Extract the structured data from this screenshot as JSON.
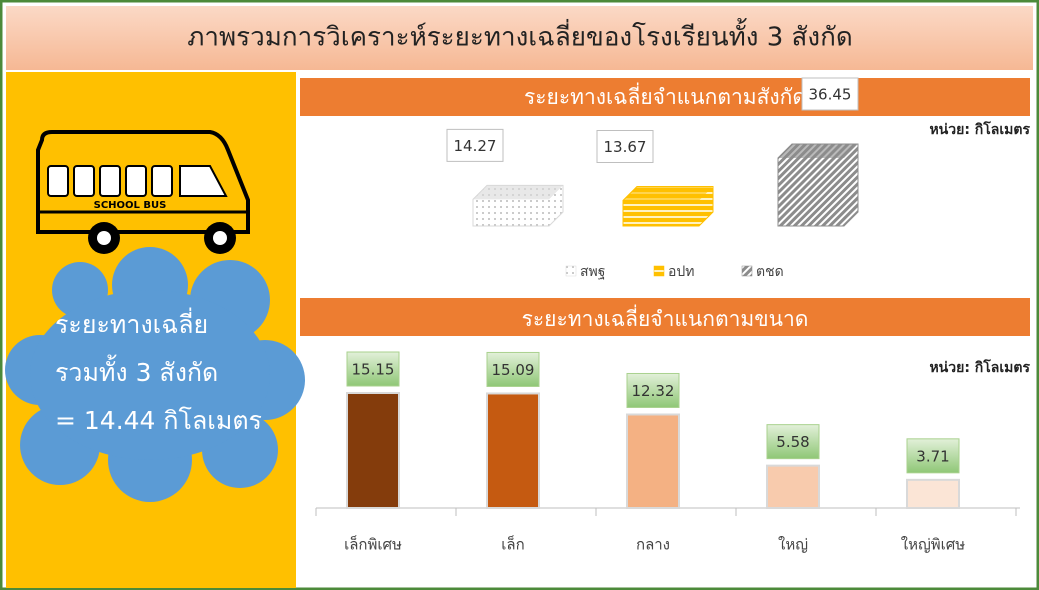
{
  "header": {
    "title": "ภาพรวมการวิเคราะห์ระยะทางเฉลี่ยของโรงเรียนทั้ง 3 สังกัด"
  },
  "bus": {
    "label": "SCHOOL BUS"
  },
  "summary": {
    "lines": [
      "ระยะทางเฉลี่ย",
      "รวมทั้ง 3 สังกัด",
      "= 14.44 กิโลเมตร"
    ]
  },
  "chart_data": [
    {
      "type": "bar",
      "three_d": true,
      "title": "ระยะทางเฉลี่ยจำแนกตามสังกัด",
      "unit_label": "หน่วย: กิโลเมตร",
      "series": [
        {
          "name": "สพฐ",
          "color": "#d9d9d9",
          "values": [
            14.27
          ]
        },
        {
          "name": "อปท",
          "color": "#ffc000",
          "values": [
            13.67
          ]
        },
        {
          "name": "ตชด",
          "color": "#8c8c8c",
          "values": [
            36.45
          ]
        }
      ]
    },
    {
      "type": "bar",
      "three_d": false,
      "title": "ระยะทางเฉลี่ยจำแนกตามขนาด",
      "unit_label": "หน่วย: กิโลเมตร",
      "categories": [
        "เล็กพิเศษ",
        "เล็ก",
        "กลาง",
        "ใหญ่",
        "ใหญ่พิเศษ"
      ],
      "values": [
        15.15,
        15.09,
        12.32,
        5.58,
        3.71
      ],
      "colors": [
        "#843c0c",
        "#c55a11",
        "#f4b183",
        "#f8cbad",
        "#fbe5d6"
      ]
    }
  ]
}
